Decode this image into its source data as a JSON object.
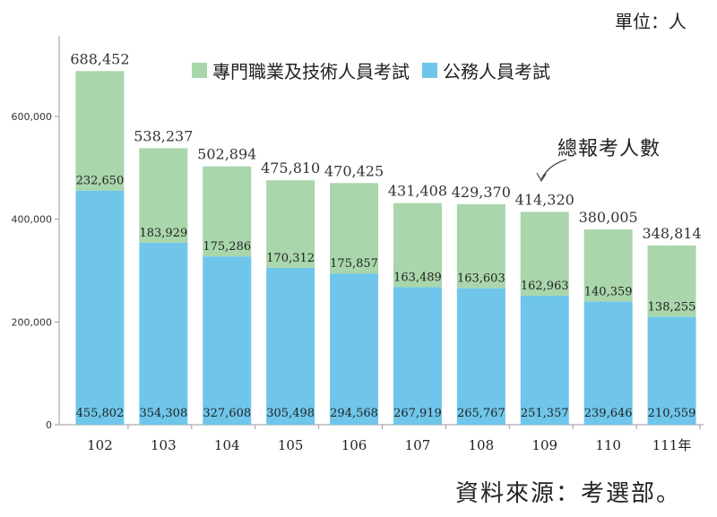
{
  "unit_label": "單位：人",
  "source_label": "資料來源：考選部。",
  "colors": {
    "professional": "#a9d6ab",
    "civil": "#6fc6ea",
    "axis": "#9a9a9a",
    "grid": "#d0d0d0"
  },
  "chart_data": {
    "type": "bar",
    "stacked": true,
    "categories": [
      "102",
      "103",
      "104",
      "105",
      "106",
      "107",
      "108",
      "109",
      "110",
      "111年"
    ],
    "series": [
      {
        "name": "公務人員考試",
        "values": [
          455802,
          354308,
          327608,
          305498,
          294568,
          267919,
          265767,
          251357,
          239646,
          210559
        ]
      },
      {
        "name": "專門職業及技術人員考試",
        "values": [
          232650,
          183929,
          175286,
          170312,
          175857,
          163489,
          163603,
          162963,
          140359,
          138255
        ]
      }
    ],
    "totals": [
      688452,
      538237,
      502894,
      475810,
      470425,
      431408,
      429370,
      414320,
      380005,
      348814
    ],
    "value_labels": {
      "civil": [
        "455,802",
        "354,308",
        "327,608",
        "305,498",
        "294,568",
        "267,919",
        "265,767",
        "251,357",
        "239,646",
        "210,559"
      ],
      "professional": [
        "232,650",
        "183,929",
        "175,286",
        "170,312",
        "175,857",
        "163,489",
        "163,603",
        "162,963",
        "140,359",
        "138,255"
      ],
      "total": [
        "688,452",
        "538,237",
        "502,894",
        "475,810",
        "470,425",
        "431,408",
        "429,370",
        "414,320",
        "380,005",
        "348,814"
      ]
    },
    "ylim": [
      0,
      700000
    ],
    "yticks": [
      0,
      200000,
      400000,
      600000
    ],
    "ytick_labels": [
      "0",
      "200,000",
      "400,000",
      "600,000"
    ],
    "annotation": "總報考人數",
    "legend_position": "top"
  }
}
